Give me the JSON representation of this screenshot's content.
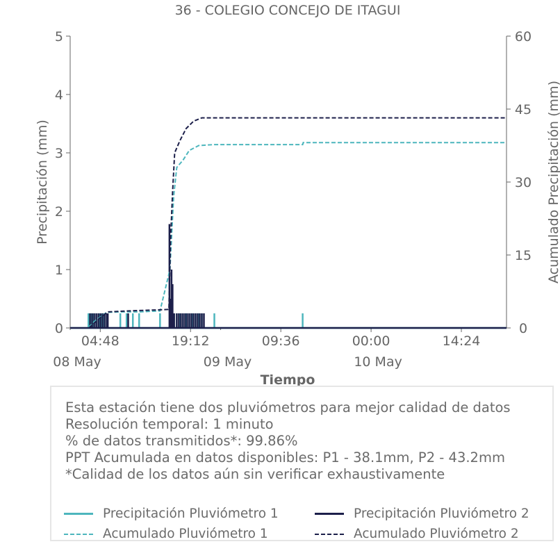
{
  "colors": {
    "p1": "#4db6bd",
    "p2": "#1c1f4a",
    "text": "#666666",
    "axis": "#666666"
  },
  "chart_data": {
    "type": "line",
    "title": "36 - COLEGIO CONCEJO DE ITAGUI",
    "xlabel": "Tiempo",
    "ylabel": "Precipitación (mm)",
    "y2label": "Acumulado Precipitación (mm)",
    "ylim": [
      0,
      5
    ],
    "y2lim": [
      0,
      60
    ],
    "yticks": [
      "0",
      "1",
      "2",
      "3",
      "4",
      "5"
    ],
    "y2ticks": [
      "0",
      "15",
      "30",
      "45",
      "60"
    ],
    "xlim": [
      "2024-05-08 00:00",
      "2024-05-10 21:36"
    ],
    "xticks": [
      {
        "t": "2024-05-08 04:48",
        "label": "04:48"
      },
      {
        "t": "2024-05-08 19:12",
        "label": "19:12"
      },
      {
        "t": "2024-05-09 09:36",
        "label": "09:36"
      },
      {
        "t": "2024-05-10 00:00",
        "label": "00:00"
      },
      {
        "t": "2024-05-10 14:24",
        "label": "14:24"
      }
    ],
    "date_labels": [
      {
        "t": "2024-05-08 00:00",
        "label": "08 May"
      },
      {
        "t": "2024-05-09 00:00",
        "label": "09 May"
      },
      {
        "t": "2024-05-10 00:00",
        "label": "10 May"
      }
    ],
    "grid": false,
    "series": [
      {
        "name": "Precipitación Pluviómetro 1",
        "axis": "left",
        "style": "solid",
        "color": "#4db6bd",
        "points": [
          [
            "2024-05-08 02:55",
            0.25
          ],
          [
            "2024-05-08 03:20",
            0.25
          ],
          [
            "2024-05-08 03:45",
            0.25
          ],
          [
            "2024-05-08 04:10",
            0.25
          ],
          [
            "2024-05-08 04:35",
            0.25
          ],
          [
            "2024-05-08 05:00",
            0.25
          ],
          [
            "2024-05-08 05:25",
            0.25
          ],
          [
            "2024-05-08 05:50",
            0.25
          ],
          [
            "2024-05-08 08:00",
            0.25
          ],
          [
            "2024-05-08 09:00",
            0.25
          ],
          [
            "2024-05-08 10:00",
            0.25
          ],
          [
            "2024-05-08 11:00",
            0.25
          ],
          [
            "2024-05-08 14:20",
            0.25
          ],
          [
            "2024-05-08 15:55",
            0.25
          ],
          [
            "2024-05-08 16:10",
            0.25
          ],
          [
            "2024-05-08 16:20",
            0.25
          ],
          [
            "2024-05-08 16:35",
            0.25
          ],
          [
            "2024-05-08 17:00",
            0.25
          ],
          [
            "2024-05-08 17:30",
            0.25
          ],
          [
            "2024-05-08 18:00",
            0.25
          ],
          [
            "2024-05-08 18:30",
            0.25
          ],
          [
            "2024-05-08 19:00",
            0.25
          ],
          [
            "2024-05-08 19:30",
            0.25
          ],
          [
            "2024-05-08 20:00",
            0.25
          ],
          [
            "2024-05-08 20:30",
            0.25
          ],
          [
            "2024-05-08 21:00",
            0.25
          ],
          [
            "2024-05-08 23:00",
            0.25
          ],
          [
            "2024-05-09 13:05",
            0.25
          ]
        ]
      },
      {
        "name": "Precipitación Pluviómetro 2",
        "axis": "left",
        "style": "solid",
        "color": "#1c1f4a",
        "points": [
          [
            "2024-05-08 03:10",
            0.25
          ],
          [
            "2024-05-08 03:30",
            0.25
          ],
          [
            "2024-05-08 03:50",
            0.25
          ],
          [
            "2024-05-08 04:10",
            0.25
          ],
          [
            "2024-05-08 04:30",
            0.25
          ],
          [
            "2024-05-08 04:50",
            0.25
          ],
          [
            "2024-05-08 05:10",
            0.25
          ],
          [
            "2024-05-08 05:30",
            0.25
          ],
          [
            "2024-05-08 05:50",
            0.25
          ],
          [
            "2024-05-08 06:00",
            0.25
          ],
          [
            "2024-05-08 09:15",
            0.25
          ],
          [
            "2024-05-08 15:50",
            1.78
          ],
          [
            "2024-05-08 16:00",
            0.5
          ],
          [
            "2024-05-08 16:10",
            1.0
          ],
          [
            "2024-05-08 16:20",
            0.75
          ],
          [
            "2024-05-08 16:35",
            0.25
          ],
          [
            "2024-05-08 17:00",
            0.25
          ],
          [
            "2024-05-08 17:20",
            0.25
          ],
          [
            "2024-05-08 17:40",
            0.25
          ],
          [
            "2024-05-08 18:00",
            0.25
          ],
          [
            "2024-05-08 18:20",
            0.25
          ],
          [
            "2024-05-08 18:40",
            0.25
          ],
          [
            "2024-05-08 19:00",
            0.25
          ],
          [
            "2024-05-08 19:20",
            0.25
          ],
          [
            "2024-05-08 19:40",
            0.25
          ],
          [
            "2024-05-08 20:00",
            0.25
          ],
          [
            "2024-05-08 20:20",
            0.25
          ],
          [
            "2024-05-08 20:40",
            0.25
          ],
          [
            "2024-05-08 21:00",
            0.25
          ],
          [
            "2024-05-08 21:20",
            0.25
          ]
        ]
      },
      {
        "name": "Acumulado Pluviómetro 1",
        "axis": "right",
        "style": "dashed",
        "color": "#4db6bd",
        "points": [
          [
            "2024-05-08 00:00",
            0
          ],
          [
            "2024-05-08 02:50",
            0
          ],
          [
            "2024-05-08 04:00",
            1.5
          ],
          [
            "2024-05-08 05:50",
            3.2
          ],
          [
            "2024-05-08 08:00",
            3.3
          ],
          [
            "2024-05-08 11:00",
            3.3
          ],
          [
            "2024-05-08 14:20",
            3.5
          ],
          [
            "2024-05-08 15:55",
            12
          ],
          [
            "2024-05-08 16:30",
            27
          ],
          [
            "2024-05-08 17:00",
            33
          ],
          [
            "2024-05-08 18:00",
            34.5
          ],
          [
            "2024-05-08 19:00",
            36.5
          ],
          [
            "2024-05-08 20:30",
            37.5
          ],
          [
            "2024-05-08 23:00",
            37.7
          ],
          [
            "2024-05-09 13:05",
            37.7
          ],
          [
            "2024-05-09 13:10",
            38.1
          ],
          [
            "2024-05-10 21:36",
            38.1
          ]
        ]
      },
      {
        "name": "Acumulado Pluviómetro 2",
        "axis": "right",
        "style": "dashed",
        "color": "#1c1f4a",
        "points": [
          [
            "2024-05-08 00:00",
            0
          ],
          [
            "2024-05-08 03:00",
            0
          ],
          [
            "2024-05-08 04:30",
            1.8
          ],
          [
            "2024-05-08 06:00",
            3.3
          ],
          [
            "2024-05-08 09:15",
            3.5
          ],
          [
            "2024-05-08 15:45",
            3.8
          ],
          [
            "2024-05-08 16:00",
            18
          ],
          [
            "2024-05-08 16:20",
            28
          ],
          [
            "2024-05-08 16:40",
            36
          ],
          [
            "2024-05-08 17:30",
            38.5
          ],
          [
            "2024-05-08 18:30",
            41
          ],
          [
            "2024-05-08 19:40",
            42.5
          ],
          [
            "2024-05-08 21:00",
            43.2
          ],
          [
            "2024-05-10 21:36",
            43.2
          ]
        ]
      }
    ]
  },
  "info": {
    "lines": [
      "Esta estación tiene dos pluviómetros para mejor calidad de datos",
      "Resolución temporal: 1 minuto",
      "% de datos transmitidos*: 99.86%",
      "PPT Acumulada en datos disponibles: P1 - 38.1mm, P2 - 43.2mm",
      "*Calidad de los datos aún sin verificar exhaustivamente"
    ]
  },
  "legend": {
    "items": [
      {
        "label": "Precipitación Pluviómetro 1",
        "color": "#4db6bd",
        "style": "solid"
      },
      {
        "label": "Precipitación Pluviómetro 2",
        "color": "#1c1f4a",
        "style": "solid"
      },
      {
        "label": "Acumulado Pluviómetro 1",
        "color": "#4db6bd",
        "style": "dashed"
      },
      {
        "label": "Acumulado Pluviómetro 2",
        "color": "#1c1f4a",
        "style": "dashed"
      }
    ]
  }
}
